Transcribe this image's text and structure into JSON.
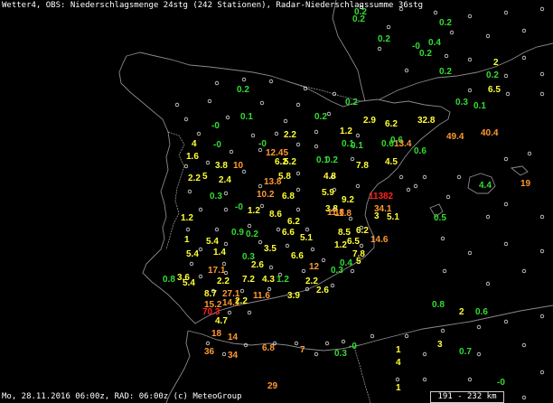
{
  "header": {
    "title": "Wetter4, OBS: Niederschlagsmenge 24stg (242 Stationen), Radar-Niederschlagssumme 36stg"
  },
  "footer": {
    "timestamp": "Mo, 28.11.2016 06:00z, RAD: 06:00z (c) MeteoGroup"
  },
  "scale": {
    "label": "191 - 232 km"
  },
  "colors": {
    "background": "#000000",
    "coast": "#8a8a8a",
    "station": "#dddddd",
    "green": "#33dd33",
    "yellow": "#ffff33",
    "orange": "#ff9933",
    "red": "#ff2222"
  },
  "observations": [
    {
      "v": "0.2",
      "c": "green"
    },
    {
      "v": "0.2",
      "c": "green"
    },
    {
      "v": "0.2",
      "c": "green"
    },
    {
      "v": "0.2",
      "c": "green"
    },
    {
      "v": "-0",
      "c": "green"
    },
    {
      "v": "0.4",
      "c": "green"
    },
    {
      "v": "0.2",
      "c": "green"
    },
    {
      "v": "0.2",
      "c": "green"
    },
    {
      "v": "2",
      "c": "yellow"
    },
    {
      "v": "0.2",
      "c": "green"
    },
    {
      "v": "6.5",
      "c": "yellow"
    },
    {
      "v": "0.2",
      "c": "green"
    },
    {
      "v": "0.3",
      "c": "green"
    },
    {
      "v": "0.1",
      "c": "green"
    },
    {
      "v": "0.2",
      "c": "green"
    },
    {
      "v": "0.1",
      "c": "green"
    },
    {
      "v": "-0",
      "c": "green"
    },
    {
      "v": "0.2",
      "c": "green"
    },
    {
      "v": "2.9",
      "c": "yellow"
    },
    {
      "v": "6.2",
      "c": "yellow"
    },
    {
      "v": "32.8",
      "c": "yellow"
    },
    {
      "v": "49.4",
      "c": "orange"
    },
    {
      "v": "40.4",
      "c": "orange"
    },
    {
      "v": "4",
      "c": "yellow"
    },
    {
      "v": "0.1",
      "c": "green"
    },
    {
      "v": "0.1",
      "c": "green"
    },
    {
      "v": "-0",
      "c": "green"
    },
    {
      "v": "2.2",
      "c": "yellow"
    },
    {
      "v": "0.6",
      "c": "green"
    },
    {
      "v": "1.2",
      "c": "yellow"
    },
    {
      "v": "-0",
      "c": "green"
    },
    {
      "v": "0.6",
      "c": "green"
    },
    {
      "v": "0.6",
      "c": "green"
    },
    {
      "v": "13.4",
      "c": "orange"
    },
    {
      "v": "1.6",
      "c": "yellow"
    },
    {
      "v": "12.45",
      "c": "orange"
    },
    {
      "v": "6.2",
      "c": "yellow"
    },
    {
      "v": "5.2",
      "c": "yellow"
    },
    {
      "v": "0.1",
      "c": "green"
    },
    {
      "v": "0.2",
      "c": "green"
    },
    {
      "v": "4.5",
      "c": "yellow"
    },
    {
      "v": "3.8",
      "c": "yellow"
    },
    {
      "v": "10",
      "c": "orange"
    },
    {
      "v": "7.8",
      "c": "yellow"
    },
    {
      "v": "2.2",
      "c": "yellow"
    },
    {
      "v": "5",
      "c": "yellow"
    },
    {
      "v": "2.4",
      "c": "yellow"
    },
    {
      "v": "5.8",
      "c": "yellow"
    },
    {
      "v": "4.8",
      "c": "yellow"
    },
    {
      "v": "13.8",
      "c": "orange"
    },
    {
      "v": "4.4",
      "c": "green"
    },
    {
      "v": "19",
      "c": "orange"
    },
    {
      "v": "0.3",
      "c": "green"
    },
    {
      "v": "10.2",
      "c": "orange"
    },
    {
      "v": "6.8",
      "c": "yellow"
    },
    {
      "v": "5.9",
      "c": "yellow"
    },
    {
      "v": "9.2",
      "c": "yellow"
    },
    {
      "v": "113",
      "c": "red"
    },
    {
      "v": "82",
      "c": "red"
    },
    {
      "v": "34.1",
      "c": "orange"
    },
    {
      "v": "-0",
      "c": "green"
    },
    {
      "v": "1.2",
      "c": "yellow"
    },
    {
      "v": "1.2",
      "c": "yellow"
    },
    {
      "v": "8.6",
      "c": "yellow"
    },
    {
      "v": "3.8",
      "c": "yellow"
    },
    {
      "v": "11.8",
      "c": "orange"
    },
    {
      "v": "3",
      "c": "yellow"
    },
    {
      "v": "5.1",
      "c": "yellow"
    },
    {
      "v": "0.5",
      "c": "green"
    },
    {
      "v": "6.2",
      "c": "yellow"
    },
    {
      "v": "11.8",
      "c": "orange"
    },
    {
      "v": "0.9",
      "c": "green"
    },
    {
      "v": "0.2",
      "c": "green"
    },
    {
      "v": "6.6",
      "c": "yellow"
    },
    {
      "v": "8.5",
      "c": "yellow"
    },
    {
      "v": "6.2",
      "c": "yellow"
    },
    {
      "v": "1",
      "c": "yellow"
    },
    {
      "v": "5.4",
      "c": "yellow"
    },
    {
      "v": "5.1",
      "c": "yellow"
    },
    {
      "v": "1.2",
      "c": "yellow"
    },
    {
      "v": "6.5",
      "c": "yellow"
    },
    {
      "v": "14.6",
      "c": "orange"
    },
    {
      "v": "5.4",
      "c": "yellow"
    },
    {
      "v": "1.4",
      "c": "yellow"
    },
    {
      "v": "3.5",
      "c": "yellow"
    },
    {
      "v": "0.3",
      "c": "green"
    },
    {
      "v": "7.8",
      "c": "yellow"
    },
    {
      "v": "6.6",
      "c": "yellow"
    },
    {
      "v": "5",
      "c": "yellow"
    },
    {
      "v": "2.6",
      "c": "yellow"
    },
    {
      "v": "0.4",
      "c": "green"
    },
    {
      "v": "12",
      "c": "orange"
    },
    {
      "v": "3.6",
      "c": "yellow"
    },
    {
      "v": "17.1",
      "c": "orange"
    },
    {
      "v": "0.3",
      "c": "green"
    },
    {
      "v": "0.8",
      "c": "green"
    },
    {
      "v": "5.4",
      "c": "yellow"
    },
    {
      "v": "2.2",
      "c": "yellow"
    },
    {
      "v": "7.2",
      "c": "yellow"
    },
    {
      "v": "4.3",
      "c": "yellow"
    },
    {
      "v": "1.2",
      "c": "green"
    },
    {
      "v": "2.2",
      "c": "yellow"
    },
    {
      "v": "8.7",
      "c": "yellow"
    },
    {
      "v": "27.1",
      "c": "orange"
    },
    {
      "v": "11.6",
      "c": "orange"
    },
    {
      "v": "3.9",
      "c": "yellow"
    },
    {
      "v": "2.6",
      "c": "yellow"
    },
    {
      "v": "15.2",
      "c": "orange"
    },
    {
      "v": "14.1",
      "c": "orange"
    },
    {
      "v": "2.2",
      "c": "yellow"
    },
    {
      "v": "0.8",
      "c": "green"
    },
    {
      "v": "70.3",
      "c": "red"
    },
    {
      "v": "2",
      "c": "yellow"
    },
    {
      "v": "0.6",
      "c": "green"
    },
    {
      "v": "4.7",
      "c": "yellow"
    },
    {
      "v": "18",
      "c": "orange"
    },
    {
      "v": "14",
      "c": "orange"
    },
    {
      "v": "-0",
      "c": "green"
    },
    {
      "v": "1",
      "c": "yellow"
    },
    {
      "v": "3",
      "c": "yellow"
    },
    {
      "v": "36",
      "c": "orange"
    },
    {
      "v": "34",
      "c": "orange"
    },
    {
      "v": "6.8",
      "c": "orange"
    },
    {
      "v": "7",
      "c": "orange"
    },
    {
      "v": "0.3",
      "c": "green"
    },
    {
      "v": "4",
      "c": "yellow"
    },
    {
      "v": "0.7",
      "c": "green"
    },
    {
      "v": "29",
      "c": "orange"
    },
    {
      "v": "1",
      "c": "yellow"
    },
    {
      "v": "-0",
      "c": "green"
    }
  ]
}
